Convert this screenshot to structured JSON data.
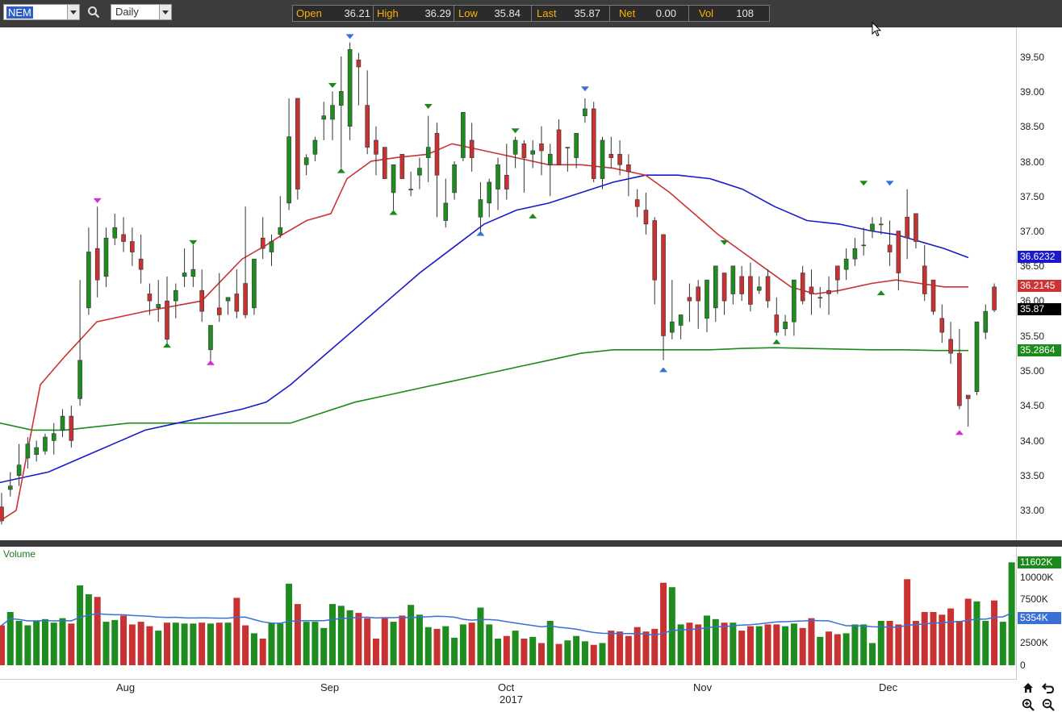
{
  "toolbar": {
    "symbol": "NEM",
    "period": "Daily",
    "quote": {
      "open_label": "Open",
      "open": "36.21",
      "high_label": "High",
      "high": "36.29",
      "low_label": "Low",
      "low": "35.84",
      "last_label": "Last",
      "last": "35.87",
      "net_label": "Net",
      "net": "0.00",
      "vol_label": "Vol",
      "vol": "108"
    }
  },
  "colors": {
    "up": "#1e8c1e",
    "down": "#c83232",
    "ma_red": "#cc3333",
    "ma_blue": "#1a1acc",
    "ma_green": "#1a8a1a",
    "vol_avg": "#3a6fd8"
  },
  "price_axis": {
    "ticks": [
      "39.50",
      "39.00",
      "38.50",
      "38.00",
      "37.50",
      "37.00",
      "36.50",
      "36.00",
      "35.50",
      "35.00",
      "34.50",
      "34.00",
      "33.50",
      "33.00"
    ]
  },
  "price_tags": {
    "ma50": "36.6232",
    "ma20": "36.2145",
    "last": "35.87",
    "ma200": "35.2864"
  },
  "volume_panel": {
    "title": "Volume",
    "ticks": [
      "10000K",
      "7500K",
      "5000K",
      "2500K",
      "0"
    ],
    "max_tag": "11602K",
    "avg_tag": "5354K"
  },
  "x_axis": {
    "months": [
      "Aug",
      "Sep",
      "Oct",
      "Nov",
      "Dec"
    ],
    "year": "2017"
  },
  "chart_data": {
    "type": "candlestick",
    "symbol": "NEM",
    "period": "Daily",
    "ylim": [
      32.7,
      39.85
    ],
    "candles": [
      [
        33.05,
        33.25,
        32.85,
        32.8
      ],
      [
        33.3,
        33.55,
        33.35,
        33.2
      ],
      [
        33.5,
        33.95,
        33.65,
        33.35
      ],
      [
        33.75,
        34.05,
        33.95,
        33.6
      ],
      [
        33.8,
        34.0,
        33.9,
        33.7
      ],
      [
        33.85,
        34.1,
        34.05,
        33.8
      ],
      [
        34.0,
        34.25,
        34.1,
        33.8
      ],
      [
        34.15,
        34.45,
        34.35,
        34.05
      ],
      [
        34.35,
        34.5,
        34.0,
        33.9
      ],
      [
        34.6,
        36.3,
        35.15,
        34.5
      ],
      [
        35.9,
        37.05,
        36.7,
        35.8
      ],
      [
        36.75,
        37.35,
        36.3,
        36.05
      ],
      [
        36.35,
        37.05,
        36.9,
        36.2
      ],
      [
        36.9,
        37.25,
        37.05,
        36.8
      ],
      [
        36.95,
        37.2,
        36.85,
        36.7
      ],
      [
        36.85,
        37.05,
        36.7,
        36.5
      ],
      [
        36.6,
        36.95,
        36.45,
        36.25
      ],
      [
        36.1,
        36.25,
        36.0,
        35.8
      ],
      [
        35.9,
        36.3,
        35.95,
        35.7
      ],
      [
        36.0,
        36.35,
        35.45,
        35.35
      ],
      [
        36.0,
        36.25,
        36.15,
        35.75
      ],
      [
        36.35,
        36.75,
        36.4,
        36.2
      ],
      [
        36.35,
        36.8,
        36.45,
        36.2
      ],
      [
        36.15,
        36.45,
        35.85,
        35.7
      ],
      [
        35.3,
        35.5,
        35.65,
        35.15
      ],
      [
        35.9,
        36.4,
        35.8,
        35.7
      ],
      [
        36.0,
        36.05,
        36.05,
        35.8
      ],
      [
        36.1,
        36.45,
        35.85,
        35.75
      ],
      [
        36.25,
        37.35,
        35.8,
        35.75
      ],
      [
        35.9,
        36.3,
        36.6,
        35.8
      ],
      [
        36.9,
        37.2,
        36.75,
        36.6
      ],
      [
        36.7,
        36.95,
        36.85,
        36.5
      ],
      [
        36.95,
        37.5,
        37.05,
        36.9
      ],
      [
        37.4,
        38.9,
        38.35,
        37.3
      ],
      [
        38.9,
        38.7,
        37.6,
        37.45
      ],
      [
        37.95,
        38.1,
        38.05,
        37.8
      ],
      [
        38.1,
        38.35,
        38.3,
        38.0
      ],
      [
        38.6,
        38.85,
        38.65,
        38.3
      ],
      [
        38.6,
        39.0,
        38.8,
        38.3
      ],
      [
        38.8,
        39.5,
        39.0,
        37.9
      ],
      [
        38.5,
        39.7,
        39.6,
        38.3
      ],
      [
        39.45,
        39.55,
        39.35,
        38.8
      ],
      [
        38.8,
        39.3,
        38.2,
        38.1
      ],
      [
        38.3,
        38.5,
        38.1,
        37.8
      ],
      [
        38.2,
        38.15,
        37.75,
        37.75
      ],
      [
        37.55,
        37.95,
        37.95,
        37.3
      ],
      [
        38.1,
        38.05,
        37.75,
        37.75
      ],
      [
        37.6,
        37.85,
        37.6,
        37.5
      ],
      [
        37.8,
        38.05,
        37.9,
        37.6
      ],
      [
        38.05,
        38.65,
        38.2,
        37.7
      ],
      [
        38.4,
        38.55,
        37.8,
        37.2
      ],
      [
        37.15,
        37.75,
        37.4,
        37.05
      ],
      [
        37.55,
        38.0,
        37.95,
        37.45
      ],
      [
        38.05,
        38.7,
        38.7,
        38.0
      ],
      [
        38.3,
        38.55,
        38.05,
        37.85
      ],
      [
        37.2,
        37.7,
        37.45,
        37.0
      ],
      [
        37.4,
        37.75,
        37.7,
        37.2
      ],
      [
        37.6,
        38.05,
        37.95,
        37.3
      ],
      [
        37.8,
        38.25,
        37.6,
        37.45
      ],
      [
        38.1,
        38.35,
        38.3,
        37.9
      ],
      [
        38.25,
        38.3,
        38.05,
        37.55
      ],
      [
        38.1,
        38.3,
        38.15,
        37.9
      ],
      [
        38.25,
        38.5,
        38.15,
        37.8
      ],
      [
        37.95,
        38.25,
        38.1,
        37.5
      ],
      [
        38.45,
        38.6,
        37.95,
        37.95
      ],
      [
        38.2,
        38.2,
        38.2,
        37.85
      ],
      [
        38.05,
        38.35,
        38.4,
        37.9
      ],
      [
        38.65,
        38.9,
        38.75,
        38.55
      ],
      [
        38.75,
        38.85,
        37.75,
        37.7
      ],
      [
        37.75,
        38.35,
        38.3,
        37.6
      ],
      [
        38.1,
        38.35,
        38.05,
        37.9
      ],
      [
        38.1,
        38.3,
        37.95,
        37.8
      ],
      [
        37.95,
        38.1,
        37.85,
        37.5
      ],
      [
        37.45,
        37.6,
        37.35,
        37.2
      ],
      [
        37.3,
        37.55,
        37.1,
        36.95
      ],
      [
        37.15,
        37.2,
        36.3,
        35.95
      ],
      [
        36.95,
        36.8,
        35.5,
        35.15
      ],
      [
        35.55,
        36.3,
        35.7,
        35.45
      ],
      [
        35.65,
        35.8,
        35.8,
        35.45
      ],
      [
        36.05,
        36.25,
        36.0,
        35.7
      ],
      [
        36.2,
        36.3,
        36.0,
        35.6
      ],
      [
        35.75,
        36.3,
        36.3,
        35.55
      ],
      [
        35.9,
        36.4,
        36.5,
        35.7
      ],
      [
        36.4,
        36.4,
        36.0,
        35.8
      ],
      [
        36.1,
        36.35,
        36.5,
        35.95
      ],
      [
        36.35,
        36.5,
        36.1,
        36.0
      ],
      [
        36.35,
        36.55,
        35.95,
        35.85
      ],
      [
        36.15,
        36.35,
        36.2,
        36.1
      ],
      [
        36.35,
        36.45,
        36.0,
        35.9
      ],
      [
        35.8,
        36.05,
        35.55,
        35.5
      ],
      [
        35.6,
        35.8,
        35.7,
        35.5
      ],
      [
        35.7,
        36.3,
        36.3,
        35.5
      ],
      [
        36.4,
        36.5,
        36.0,
        35.95
      ],
      [
        36.2,
        36.45,
        36.1,
        35.8
      ],
      [
        36.05,
        36.2,
        36.05,
        35.9
      ],
      [
        36.15,
        36.35,
        36.1,
        35.8
      ],
      [
        36.5,
        36.5,
        36.3,
        36.1
      ],
      [
        36.45,
        36.75,
        36.6,
        36.3
      ],
      [
        36.6,
        36.9,
        36.75,
        36.5
      ],
      [
        36.8,
        37.05,
        36.8,
        36.65
      ],
      [
        37.0,
        37.2,
        37.1,
        36.9
      ],
      [
        37.1,
        37.2,
        37.1,
        36.95
      ],
      [
        36.8,
        37.15,
        36.7,
        36.5
      ],
      [
        37.0,
        37.0,
        36.4,
        36.15
      ],
      [
        37.2,
        37.6,
        36.9,
        36.6
      ],
      [
        37.25,
        36.95,
        36.85,
        36.75
      ],
      [
        36.5,
        36.8,
        36.1,
        36.0
      ],
      [
        36.3,
        36.3,
        35.85,
        35.8
      ],
      [
        35.75,
        35.95,
        35.55,
        35.4
      ],
      [
        35.45,
        35.7,
        35.25,
        35.1
      ],
      [
        35.25,
        35.6,
        34.5,
        34.45
      ],
      [
        34.65,
        34.6,
        34.6,
        34.2
      ],
      [
        34.7,
        35.7,
        35.7,
        34.65
      ],
      [
        35.55,
        35.95,
        35.85,
        35.45
      ],
      [
        36.2,
        36.25,
        35.87,
        35.84
      ]
    ],
    "ma_red": [
      [
        0,
        32.85
      ],
      [
        20,
        33.0
      ],
      [
        50,
        34.8
      ],
      [
        80,
        35.2
      ],
      [
        120,
        35.7
      ],
      [
        180,
        35.85
      ],
      [
        250,
        36.0
      ],
      [
        300,
        36.6
      ],
      [
        330,
        36.8
      ],
      [
        350,
        36.95
      ],
      [
        380,
        37.15
      ],
      [
        410,
        37.25
      ],
      [
        430,
        37.75
      ],
      [
        460,
        38.0
      ],
      [
        490,
        38.05
      ],
      [
        530,
        38.1
      ],
      [
        560,
        38.25
      ],
      [
        600,
        38.15
      ],
      [
        640,
        38.05
      ],
      [
        680,
        37.95
      ],
      [
        720,
        37.95
      ],
      [
        760,
        37.9
      ],
      [
        800,
        37.8
      ],
      [
        830,
        37.55
      ],
      [
        860,
        37.25
      ],
      [
        890,
        36.95
      ],
      [
        920,
        36.7
      ],
      [
        950,
        36.45
      ],
      [
        980,
        36.2
      ],
      [
        1010,
        36.1
      ],
      [
        1040,
        36.15
      ],
      [
        1060,
        36.2
      ],
      [
        1080,
        36.25
      ],
      [
        1110,
        36.3
      ],
      [
        1140,
        36.25
      ],
      [
        1170,
        36.2
      ],
      [
        1200,
        36.2
      ]
    ],
    "ma_blue": [
      [
        0,
        33.4
      ],
      [
        20,
        33.45
      ],
      [
        60,
        33.55
      ],
      [
        100,
        33.75
      ],
      [
        140,
        33.95
      ],
      [
        180,
        34.15
      ],
      [
        220,
        34.25
      ],
      [
        260,
        34.35
      ],
      [
        300,
        34.45
      ],
      [
        330,
        34.55
      ],
      [
        360,
        34.8
      ],
      [
        400,
        35.2
      ],
      [
        440,
        35.6
      ],
      [
        480,
        36.0
      ],
      [
        520,
        36.4
      ],
      [
        560,
        36.75
      ],
      [
        600,
        37.1
      ],
      [
        640,
        37.3
      ],
      [
        680,
        37.4
      ],
      [
        720,
        37.55
      ],
      [
        760,
        37.7
      ],
      [
        800,
        37.8
      ],
      [
        840,
        37.8
      ],
      [
        880,
        37.75
      ],
      [
        920,
        37.6
      ],
      [
        960,
        37.35
      ],
      [
        1000,
        37.15
      ],
      [
        1040,
        37.1
      ],
      [
        1080,
        37.0
      ],
      [
        1110,
        36.95
      ],
      [
        1140,
        36.85
      ],
      [
        1170,
        36.75
      ],
      [
        1200,
        36.62
      ]
    ],
    "ma_green": [
      [
        0,
        34.25
      ],
      [
        40,
        34.15
      ],
      [
        80,
        34.15
      ],
      [
        120,
        34.2
      ],
      [
        160,
        34.25
      ],
      [
        200,
        34.25
      ],
      [
        240,
        34.25
      ],
      [
        280,
        34.25
      ],
      [
        320,
        34.25
      ],
      [
        360,
        34.25
      ],
      [
        400,
        34.4
      ],
      [
        440,
        34.55
      ],
      [
        480,
        34.65
      ],
      [
        520,
        34.75
      ],
      [
        560,
        34.85
      ],
      [
        600,
        34.95
      ],
      [
        640,
        35.05
      ],
      [
        680,
        35.15
      ],
      [
        720,
        35.25
      ],
      [
        760,
        35.3
      ],
      [
        800,
        35.3
      ],
      [
        840,
        35.3
      ],
      [
        880,
        35.3
      ],
      [
        920,
        35.32
      ],
      [
        960,
        35.33
      ],
      [
        1000,
        35.32
      ],
      [
        1040,
        35.31
      ],
      [
        1080,
        35.3
      ],
      [
        1120,
        35.3
      ],
      [
        1160,
        35.29
      ],
      [
        1200,
        35.29
      ]
    ],
    "volume": [
      4.5,
      6.0,
      5.0,
      4.5,
      5.0,
      5.2,
      4.8,
      5.3,
      4.7,
      9.0,
      8.0,
      7.7,
      4.9,
      5.1,
      5.6,
      4.6,
      4.9,
      4.4,
      3.9,
      4.8,
      4.8,
      4.7,
      4.7,
      4.8,
      4.7,
      4.8,
      4.8,
      7.6,
      4.5,
      3.6,
      3.0,
      4.8,
      4.7,
      9.2,
      6.9,
      4.9,
      4.9,
      4.2,
      6.9,
      6.7,
      6.2,
      5.9,
      5.3,
      3.0,
      5.3,
      4.9,
      5.6,
      6.8,
      5.7,
      4.3,
      4.1,
      4.4,
      3.1,
      4.6,
      4.8,
      6.5,
      4.6,
      3.0,
      3.3,
      3.9,
      3.0,
      3.2,
      2.5,
      5.0,
      2.4,
      2.8,
      3.3,
      2.7,
      2.3,
      2.5,
      3.9,
      3.8,
      3.3,
      4.3,
      3.8,
      4.1,
      9.3,
      8.8,
      4.6,
      4.8,
      4.6,
      5.6,
      5.2,
      4.8,
      4.8,
      3.9,
      4.4,
      4.4,
      4.6,
      4.6,
      4.4,
      4.7,
      4.2,
      5.3,
      3.2,
      3.8,
      3.5,
      3.6,
      4.6,
      4.6,
      2.5,
      5.0,
      5.0,
      4.6,
      9.7,
      5.0,
      6.0,
      6.0,
      5.7,
      6.4,
      5.0,
      7.5,
      7.2,
      5.0,
      7.3,
      4.9,
      11.6
    ],
    "markers": [
      {
        "i": 11,
        "price": 37.4,
        "dir": "down",
        "color": "#d030d0"
      },
      {
        "i": 19,
        "price": 35.4,
        "dir": "up",
        "color": "#1a8a1a"
      },
      {
        "i": 22,
        "price": 36.8,
        "dir": "down",
        "color": "#1a8a1a"
      },
      {
        "i": 24,
        "price": 35.15,
        "dir": "up",
        "color": "#d030d0"
      },
      {
        "i": 38,
        "price": 39.05,
        "dir": "down",
        "color": "#1a8a1a"
      },
      {
        "i": 39,
        "price": 37.9,
        "dir": "up",
        "color": "#1a8a1a"
      },
      {
        "i": 40,
        "price": 39.75,
        "dir": "down",
        "color": "#3a6fd8"
      },
      {
        "i": 45,
        "price": 37.3,
        "dir": "up",
        "color": "#1a8a1a"
      },
      {
        "i": 49,
        "price": 38.75,
        "dir": "down",
        "color": "#1a8a1a"
      },
      {
        "i": 55,
        "price": 37.0,
        "dir": "up",
        "color": "#3a6fd8"
      },
      {
        "i": 59,
        "price": 38.4,
        "dir": "down",
        "color": "#1a8a1a"
      },
      {
        "i": 61,
        "price": 37.25,
        "dir": "up",
        "color": "#1a8a1a"
      },
      {
        "i": 67,
        "price": 39.0,
        "dir": "down",
        "color": "#3a6fd8"
      },
      {
        "i": 76,
        "price": 35.05,
        "dir": "up",
        "color": "#3a6fd8"
      },
      {
        "i": 83,
        "price": 36.8,
        "dir": "down",
        "color": "#1a8a1a"
      },
      {
        "i": 89,
        "price": 35.45,
        "dir": "up",
        "color": "#1a8a1a"
      },
      {
        "i": 99,
        "price": 37.65,
        "dir": "down",
        "color": "#1a8a1a"
      },
      {
        "i": 101,
        "price": 36.15,
        "dir": "up",
        "color": "#1a8a1a"
      },
      {
        "i": 102,
        "price": 37.65,
        "dir": "down",
        "color": "#3a6fd8"
      },
      {
        "i": 110,
        "price": 34.15,
        "dir": "up",
        "color": "#d030d0"
      }
    ]
  }
}
